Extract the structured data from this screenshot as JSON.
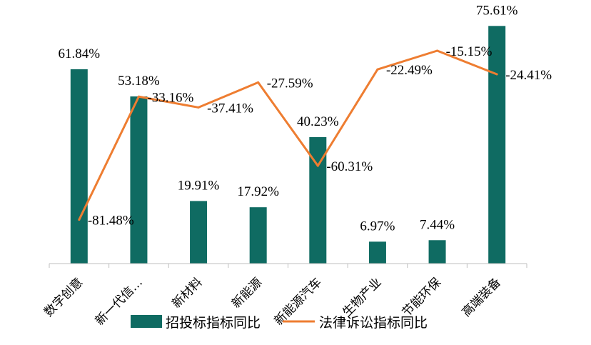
{
  "chart_data": {
    "type": "bar+line",
    "categories": [
      "数字创意",
      "新一代信…",
      "新材料",
      "新能源",
      "新能源汽车",
      "生物产业",
      "节能环保",
      "高端装备"
    ],
    "series": [
      {
        "name": "招投标指标同比",
        "type": "bar",
        "color": "#0f6b62",
        "values": [
          61.84,
          53.18,
          19.91,
          17.92,
          40.23,
          6.97,
          7.44,
          75.61
        ],
        "labels": [
          "61.84%",
          "53.18%",
          "19.91%",
          "17.92%",
          "40.23%",
          "6.97%",
          "7.44%",
          "75.61%"
        ]
      },
      {
        "name": "法律诉讼指标同比",
        "type": "line",
        "color": "#ee7d31",
        "values": [
          -81.48,
          -33.16,
          -37.41,
          -27.59,
          -60.31,
          -22.49,
          -15.15,
          -24.41
        ],
        "labels": [
          "-81.48%",
          "-33.16%",
          "-37.41%",
          "-27.59%",
          "-60.31%",
          "-22.49%",
          "-15.15%",
          "-24.41%"
        ]
      }
    ],
    "legend_position": "bottom",
    "grid": false
  }
}
